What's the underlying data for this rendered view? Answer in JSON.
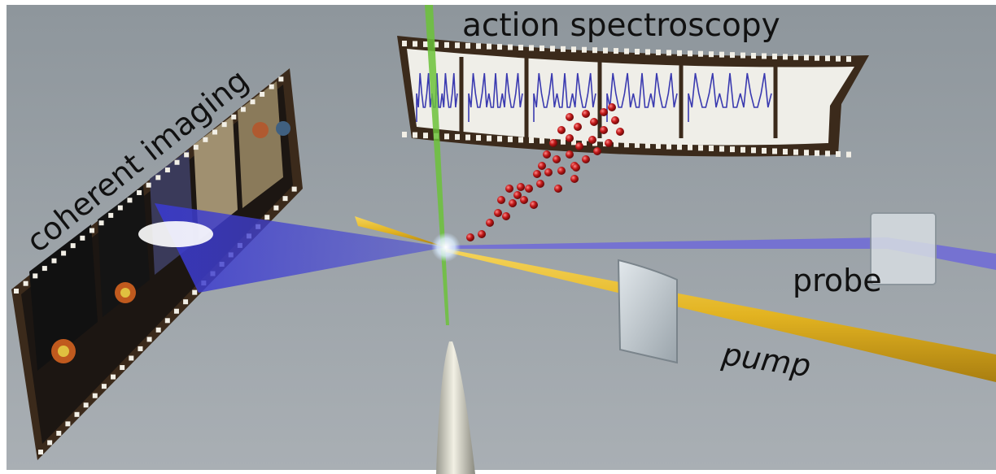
{
  "labels": {
    "action_spectroscopy": "action spectroscopy",
    "coherent_imaging": "coherent imaging",
    "probe": "probe",
    "pump": "pump"
  },
  "colors": {
    "background_top": "#8c949a",
    "background_bottom": "#a7adb2",
    "pump_beam": "#e0b422",
    "probe_beam": "#6e6ad8",
    "green_beam": "#6cc23a",
    "film_frame": "#3a2a1a",
    "spectrum_line": "#3a3ab0",
    "particle": "#b01818"
  },
  "icons": [
    "film-strip-spectroscopy",
    "film-strip-imaging",
    "mirror",
    "beam-splitter",
    "nozzle",
    "particle-cloud"
  ]
}
